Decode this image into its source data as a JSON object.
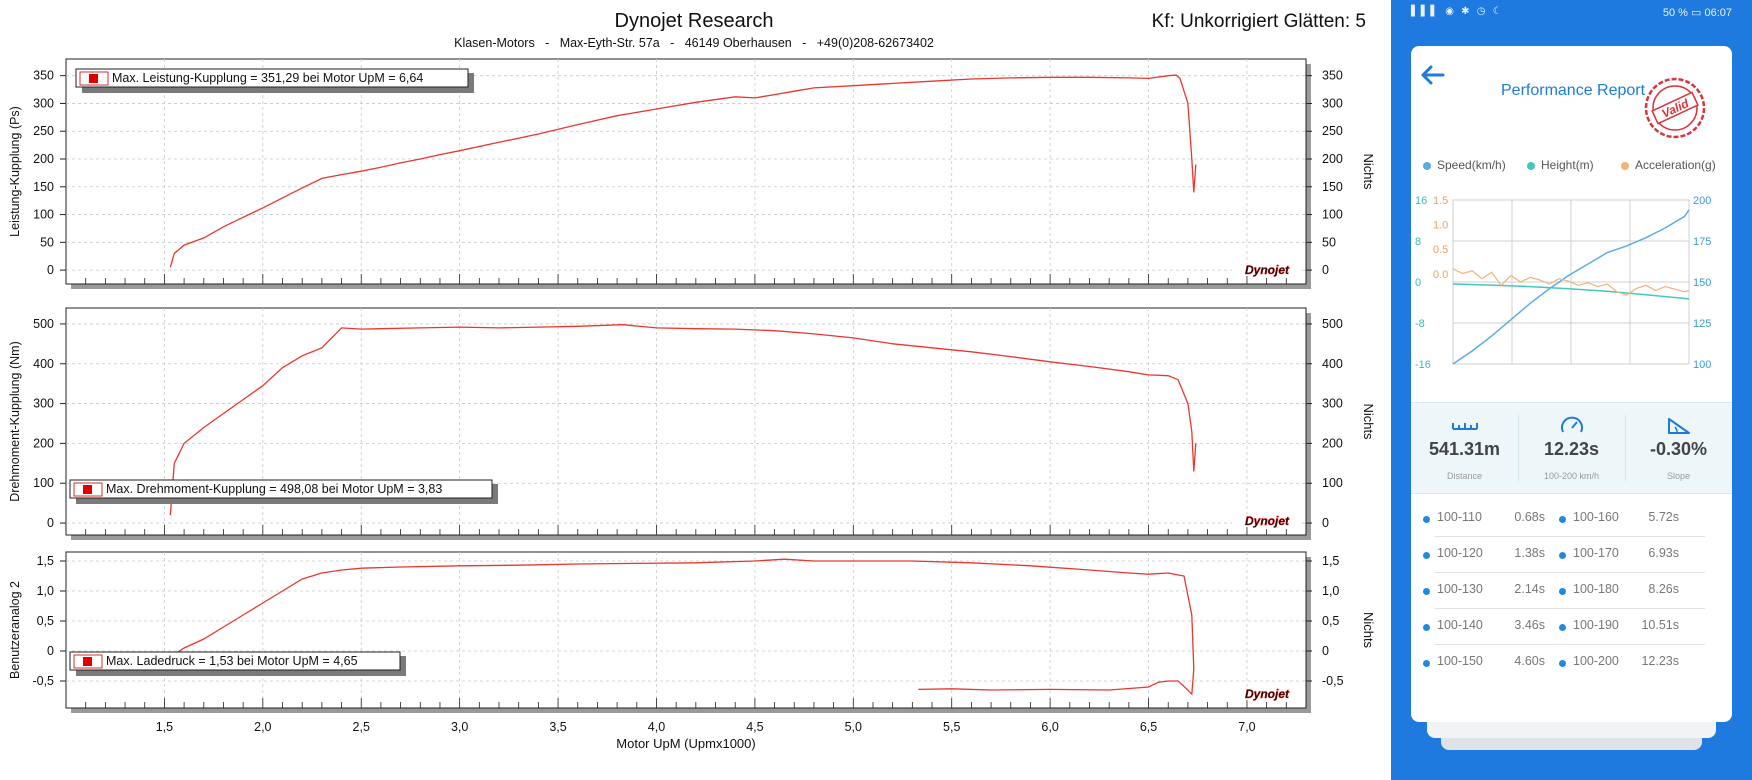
{
  "dyno": {
    "title": "Dynojet Research",
    "subtitle": "Klasen-Motors   -   Max-Eyth-Str. 57a   -   46149 Oberhausen   -   +49(0)208-62673402",
    "correction": "Kf: Unkorrigiert Glätten: 5",
    "x_axis_label": "Motor UpM (Upmx1000)",
    "x_ticks": [
      "1,5",
      "2,0",
      "2,5",
      "3,0",
      "3,5",
      "4,0",
      "4,5",
      "5,0",
      "5,5",
      "6,0",
      "6,5",
      "7,0"
    ],
    "right_axis_label": "Nichts",
    "logo_text": "Dynojet",
    "line_color": "#e8372e"
  },
  "chart_data": [
    {
      "type": "line",
      "title": "",
      "xlabel": "Motor UpM (Upmx1000)",
      "ylabel": "Leistung-Kupplung (Ps)",
      "y2label": "Nichts",
      "xlim": [
        1.0,
        7.3
      ],
      "ylim": [
        -25,
        380
      ],
      "yticks": [
        0,
        50,
        100,
        150,
        200,
        250,
        300,
        350
      ],
      "ytick_labels": [
        "0",
        "50",
        "100",
        "150",
        "200",
        "250",
        "300",
        "350"
      ],
      "legend": "Max. Leistung-Kupplung = 351,29 bei Motor UpM = 6,64",
      "legend_placement": "top-left",
      "grid": true,
      "series": [
        {
          "name": "",
          "x": [
            1.53,
            1.55,
            1.6,
            1.7,
            1.8,
            1.9,
            2.0,
            2.1,
            2.2,
            2.3,
            2.4,
            2.5,
            2.6,
            2.7,
            2.8,
            2.9,
            3.0,
            3.2,
            3.4,
            3.6,
            3.8,
            4.0,
            4.2,
            4.4,
            4.5,
            4.6,
            4.7,
            4.8,
            5.0,
            5.2,
            5.4,
            5.6,
            5.8,
            6.0,
            6.2,
            6.4,
            6.5,
            6.6,
            6.64,
            6.66,
            6.7,
            6.72,
            6.73,
            6.74
          ],
          "y": [
            5,
            30,
            45,
            58,
            78,
            95,
            112,
            130,
            148,
            165,
            172,
            178,
            185,
            193,
            200,
            208,
            215,
            230,
            245,
            262,
            278,
            290,
            302,
            312,
            310,
            316,
            322,
            328,
            332,
            336,
            340,
            344,
            346,
            347,
            347,
            346,
            345,
            350,
            351,
            345,
            300,
            200,
            140,
            190
          ]
        }
      ]
    },
    {
      "type": "line",
      "title": "",
      "xlabel": "Motor UpM (Upmx1000)",
      "ylabel": "Drehmoment-Kupplung (Nm)",
      "y2label": "Nichts",
      "xlim": [
        1.0,
        7.3
      ],
      "ylim": [
        -30,
        540
      ],
      "yticks": [
        0,
        100,
        200,
        300,
        400,
        500
      ],
      "ytick_labels": [
        "0",
        "100",
        "200",
        "300",
        "400",
        "500"
      ],
      "legend": "Max. Drehmoment-Kupplung = 498,08 bei Motor UpM = 3,83",
      "legend_placement": "bottom-left",
      "grid": true,
      "series": [
        {
          "name": "",
          "x": [
            1.53,
            1.55,
            1.6,
            1.7,
            1.8,
            1.9,
            2.0,
            2.1,
            2.2,
            2.3,
            2.4,
            2.5,
            2.6,
            2.8,
            3.0,
            3.2,
            3.4,
            3.6,
            3.83,
            4.0,
            4.2,
            4.4,
            4.6,
            4.8,
            5.0,
            5.2,
            5.4,
            5.6,
            5.8,
            6.0,
            6.2,
            6.4,
            6.5,
            6.6,
            6.65,
            6.7,
            6.72,
            6.73,
            6.74
          ],
          "y": [
            20,
            150,
            200,
            240,
            275,
            310,
            345,
            390,
            420,
            440,
            490,
            487,
            488,
            490,
            492,
            490,
            492,
            494,
            498,
            490,
            488,
            487,
            483,
            475,
            465,
            450,
            440,
            430,
            418,
            405,
            393,
            380,
            372,
            370,
            360,
            300,
            230,
            130,
            200
          ]
        }
      ]
    },
    {
      "type": "line",
      "title": "",
      "xlabel": "Motor UpM (Upmx1000)",
      "ylabel": "Benutzeranalog 2",
      "y2label": "Nichts",
      "xlim": [
        1.0,
        7.3
      ],
      "ylim": [
        -0.95,
        1.65
      ],
      "yticks": [
        -0.5,
        0,
        0.5,
        1.0,
        1.5
      ],
      "ytick_labels": [
        "-0,5",
        "0",
        "0,5",
        "1,0",
        "1,5"
      ],
      "legend": "Max. Ladedruck = 1,53 bei Motor UpM = 4,65",
      "legend_placement": "bottom-left",
      "grid": true,
      "series": [
        {
          "name": "",
          "x": [
            1.53,
            1.6,
            1.7,
            1.8,
            1.9,
            2.0,
            2.1,
            2.2,
            2.3,
            2.4,
            2.5,
            2.7,
            3.0,
            3.3,
            3.6,
            3.9,
            4.2,
            4.5,
            4.65,
            4.8,
            5.0,
            5.3,
            5.6,
            5.9,
            6.2,
            6.4,
            6.5,
            6.6,
            6.68,
            6.72,
            6.73,
            6.72,
            6.69,
            6.65,
            6.6,
            6.55,
            6.5,
            6.3,
            6.0,
            5.7,
            5.5,
            5.33
          ],
          "y": [
            -0.1,
            0.05,
            0.2,
            0.4,
            0.6,
            0.8,
            1.0,
            1.2,
            1.3,
            1.35,
            1.38,
            1.4,
            1.42,
            1.43,
            1.45,
            1.46,
            1.47,
            1.5,
            1.53,
            1.5,
            1.5,
            1.5,
            1.47,
            1.42,
            1.35,
            1.3,
            1.28,
            1.3,
            1.25,
            0.6,
            -0.3,
            -0.72,
            -0.62,
            -0.5,
            -0.5,
            -0.52,
            -0.6,
            -0.65,
            -0.64,
            -0.65,
            -0.63,
            -0.64
          ]
        }
      ]
    },
    {
      "type": "line",
      "title": "",
      "legend": [
        "Speed(km/h)",
        "Height(m)",
        "Acceleration(g)"
      ],
      "legend_placement": "top",
      "grid": true,
      "left_axis_1": {
        "ticks": [
          "16",
          "8",
          "0",
          "-8",
          "-16"
        ],
        "color": "#3bbcb4"
      },
      "left_axis_2": {
        "ticks": [
          "1.5",
          "1.0",
          "0.5",
          "0.0"
        ],
        "color": "#f0a060"
      },
      "right_axis": {
        "ticks": [
          "200",
          "175",
          "150",
          "125",
          "100"
        ],
        "color": "#3a9ad9"
      },
      "series": [
        {
          "name": "Speed(km/h)",
          "color": "#5aade3",
          "t": [
            0,
            1,
            2,
            3,
            4,
            5,
            6,
            7,
            8,
            9,
            10,
            11,
            12,
            12.23
          ],
          "y": [
            100,
            108,
            117,
            127,
            137,
            146,
            154,
            161,
            168,
            172,
            177,
            183,
            190,
            194
          ]
        },
        {
          "name": "Height(m)",
          "color": "#45c6bc",
          "t": [
            0,
            2,
            4,
            6,
            8,
            10,
            12.23
          ],
          "y": [
            -0.4,
            -0.6,
            -0.9,
            -1.3,
            -1.8,
            -2.5,
            -3.3
          ]
        },
        {
          "name": "Acceleration(g)",
          "color": "#f2b27a",
          "t": [
            0,
            0.5,
            1,
            1.5,
            2,
            2.5,
            3,
            3.5,
            4,
            4.5,
            5,
            5.5,
            6,
            6.5,
            7,
            7.5,
            8,
            8.5,
            9,
            9.5,
            10,
            10.5,
            11,
            11.5,
            12,
            12.23
          ],
          "y": [
            0.45,
            0.38,
            0.42,
            0.3,
            0.4,
            0.2,
            0.35,
            0.25,
            0.32,
            0.28,
            0.22,
            0.3,
            0.26,
            0.2,
            0.24,
            0.18,
            0.22,
            0.1,
            0.05,
            0.15,
            0.2,
            0.12,
            0.18,
            0.14,
            0.1,
            0.12
          ]
        }
      ]
    }
  ],
  "phone": {
    "status_left": "▌▌▌ ◉ ✱ ◷ ☾",
    "status_right": "50 % ▭ 06:07",
    "report_title": "Performance Report",
    "stamp_text": "Valid",
    "stamp_color": "#d9343a",
    "accent": "#1f7ae0",
    "legend": [
      {
        "label": "Speed(km/h)",
        "color": "#5aade3"
      },
      {
        "label": "Height(m)",
        "color": "#45c6bc"
      },
      {
        "label": "Acceleration(g)",
        "color": "#f2b27a"
      }
    ],
    "stats": [
      {
        "value": "541.31m",
        "label": "Distance",
        "icon": "ruler-icon"
      },
      {
        "value": "12.23s",
        "label": "100-200 km/h",
        "icon": "speedometer-icon"
      },
      {
        "value": "-0.30%",
        "label": "Slope",
        "icon": "slope-icon"
      }
    ],
    "splits": [
      {
        "name": "100-110",
        "time": "0.68s"
      },
      {
        "name": "100-160",
        "time": "5.72s"
      },
      {
        "name": "100-120",
        "time": "1.38s"
      },
      {
        "name": "100-170",
        "time": "6.93s"
      },
      {
        "name": "100-130",
        "time": "2.14s"
      },
      {
        "name": "100-180",
        "time": "8.26s"
      },
      {
        "name": "100-140",
        "time": "3.46s"
      },
      {
        "name": "100-190",
        "time": "10.51s"
      },
      {
        "name": "100-150",
        "time": "4.60s"
      },
      {
        "name": "100-200",
        "time": "12.23s"
      }
    ]
  }
}
